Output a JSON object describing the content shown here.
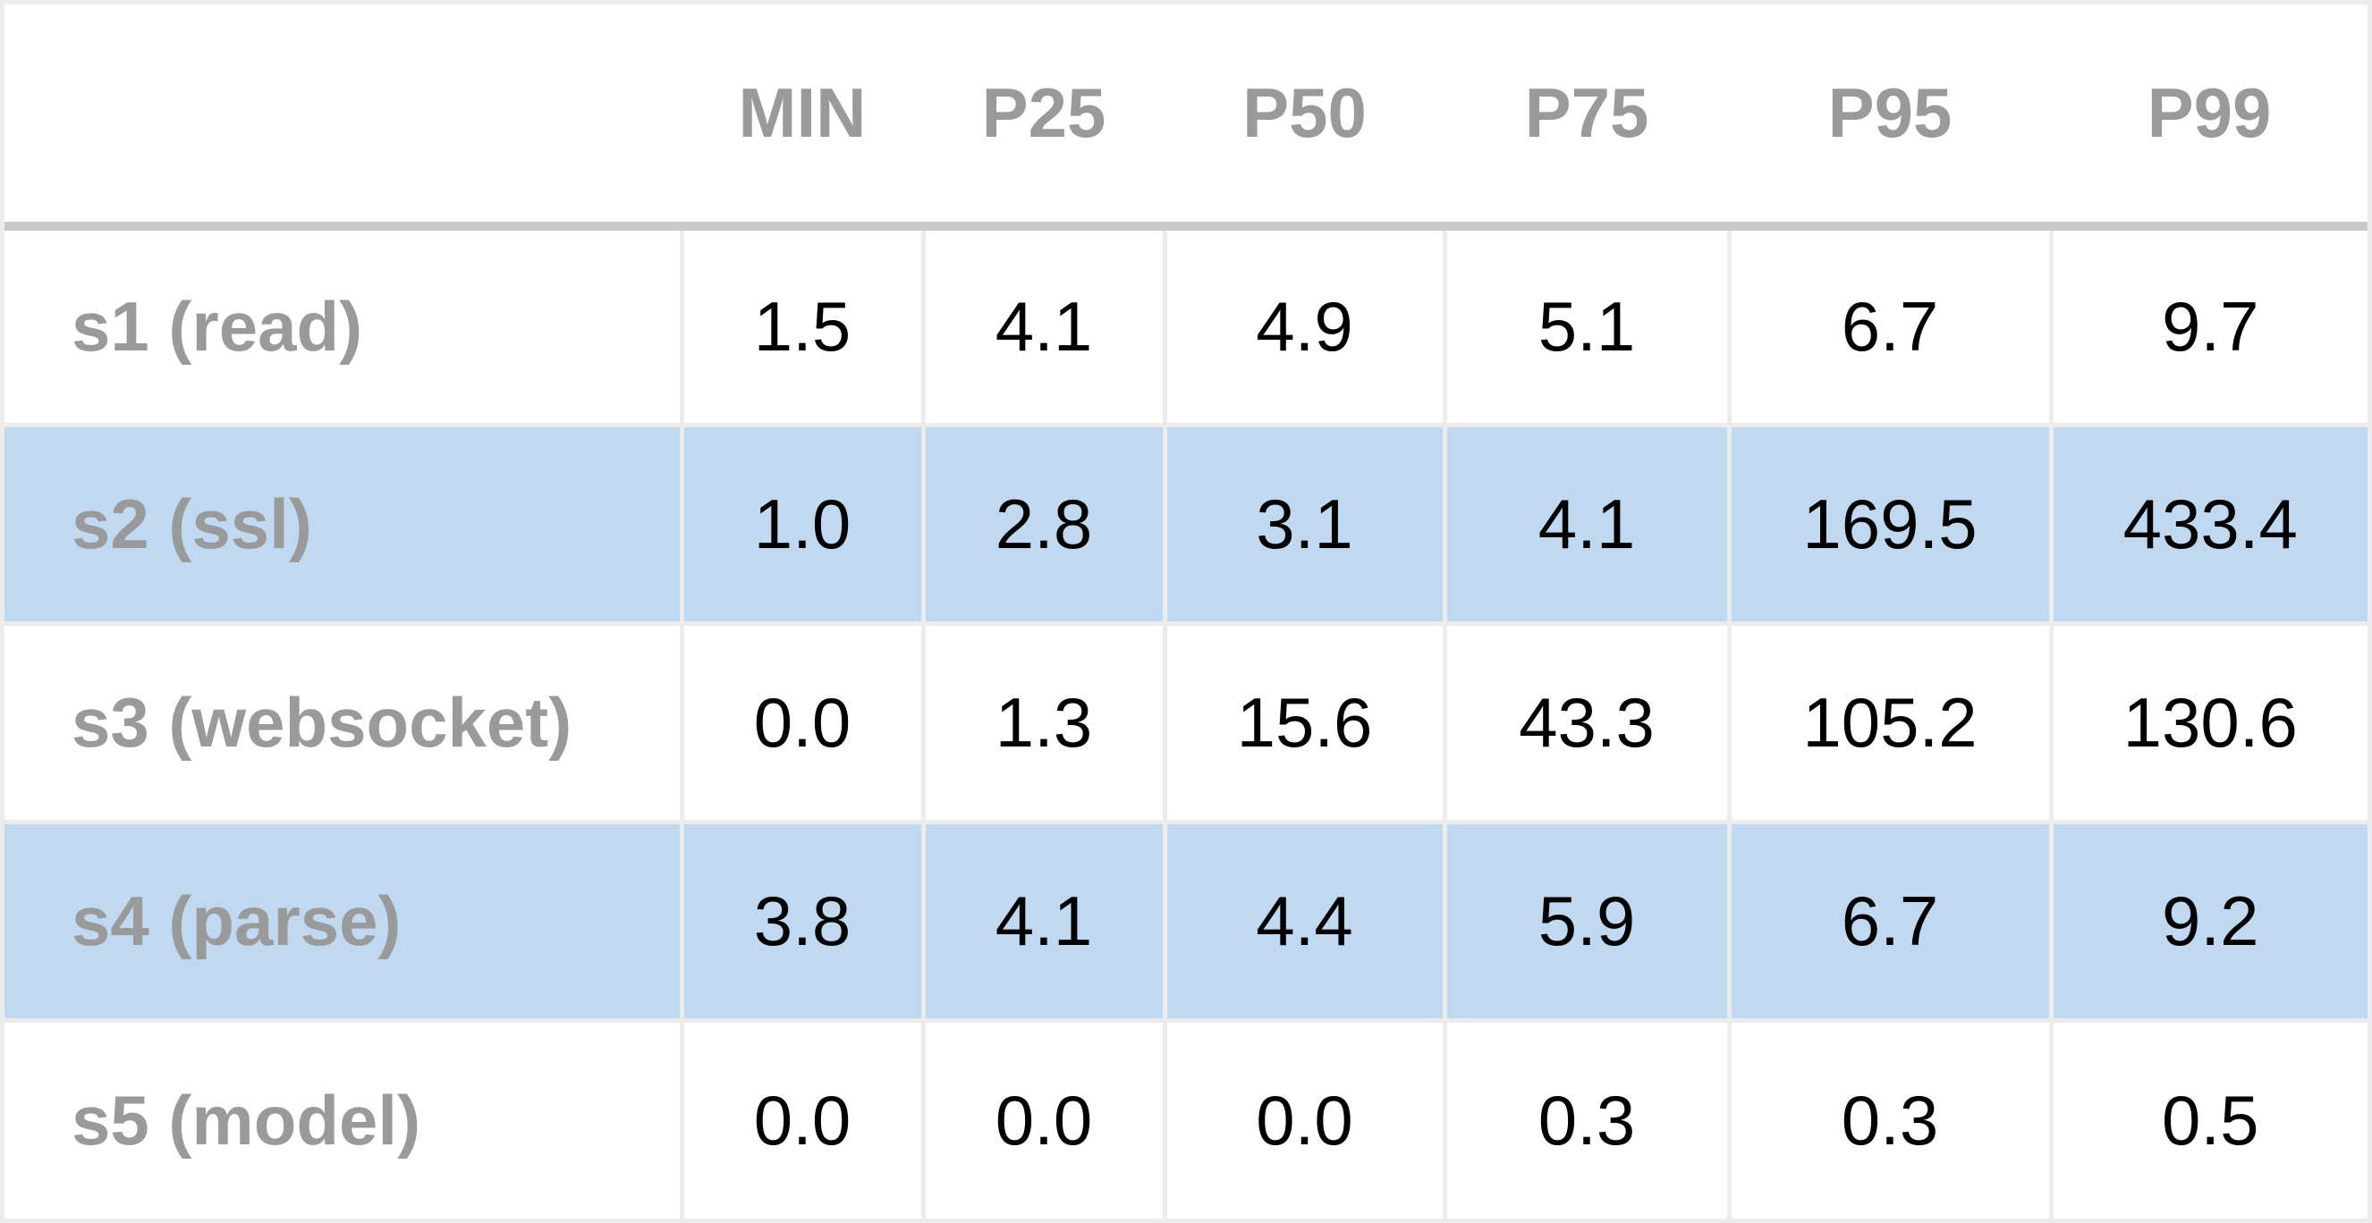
{
  "chart_data": {
    "type": "table",
    "columns": [
      "",
      "MIN",
      "P25",
      "P50",
      "P75",
      "P95",
      "P99"
    ],
    "rows": [
      {
        "label": "s1 (read)",
        "values": [
          "1.5",
          "4.1",
          "4.9",
          "5.1",
          "6.7",
          "9.7"
        ]
      },
      {
        "label": "s2 (ssl)",
        "values": [
          "1.0",
          "2.8",
          "3.1",
          "4.1",
          "169.5",
          "433.4"
        ]
      },
      {
        "label": "s3 (websocket)",
        "values": [
          "0.0",
          "1.3",
          "15.6",
          "43.3",
          "105.2",
          "130.6"
        ]
      },
      {
        "label": "s4 (parse)",
        "values": [
          "3.8",
          "4.1",
          "4.4",
          "5.9",
          "6.7",
          "9.2"
        ]
      },
      {
        "label": "s5 (model)",
        "values": [
          "0.0",
          "0.0",
          "0.0",
          "0.3",
          "0.3",
          "0.5"
        ]
      }
    ],
    "header_color": "#9a9a9a",
    "label_color": "#9a9a9a",
    "stripe_color": "#c0d9f1"
  }
}
